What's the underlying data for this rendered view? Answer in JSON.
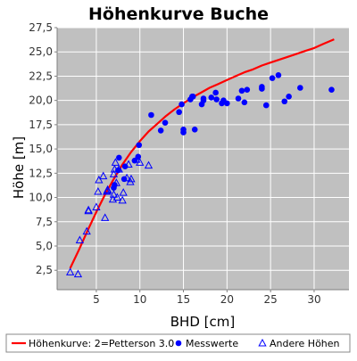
{
  "chart_data": {
    "type": "scatter",
    "title": "Höhenkurve  Buche",
    "xlabel": "BHD [cm]",
    "ylabel": "Höhe [m]",
    "xlim": [
      0.5,
      34
    ],
    "ylim": [
      0.5,
      27.5
    ],
    "xticks": [
      5,
      10,
      15,
      20,
      25,
      30
    ],
    "yticks": [
      2.5,
      5.0,
      7.5,
      10.0,
      12.5,
      15.0,
      17.5,
      20.0,
      22.5,
      25.0,
      27.5
    ],
    "ytick_labels": [
      "2,5",
      "5,0",
      "7,5",
      "10,0",
      "12,5",
      "15,0",
      "17,5",
      "20,0",
      "22,5",
      "25,0",
      "27,5"
    ],
    "grid": true,
    "legend_position": "bottom",
    "colors": {
      "plot_background": "#c0c0c0",
      "grid": "#ffffff",
      "curve": "#ff0000",
      "points": "#0000ff"
    },
    "series": [
      {
        "name": "Höhenkurve: 2=Petterson 3.0",
        "kind": "line",
        "color": "#ff0000",
        "x": [
          2,
          3,
          4,
          5,
          6,
          7,
          8,
          9,
          10,
          11,
          12,
          13,
          14,
          15,
          16,
          17,
          18,
          19,
          20,
          21,
          22,
          23,
          24,
          25,
          26,
          27,
          28,
          29,
          30,
          31,
          32.3
        ],
        "y": [
          2.7,
          4.6,
          6.6,
          8.5,
          10.3,
          11.9,
          13.4,
          14.7,
          15.8,
          16.8,
          17.6,
          18.4,
          19.1,
          19.7,
          20.3,
          20.8,
          21.3,
          21.7,
          22.1,
          22.5,
          22.9,
          23.2,
          23.6,
          23.9,
          24.2,
          24.5,
          24.8,
          25.1,
          25.4,
          25.8,
          26.3
        ]
      },
      {
        "name": "Messwerte",
        "kind": "scatter",
        "marker": "circle",
        "color": "#0000ff",
        "x": [
          7.0,
          7.1,
          7.5,
          7.6,
          8.2,
          8.3,
          9.4,
          9.8,
          9.9,
          11.3,
          12.4,
          12.9,
          14.5,
          14.8,
          15.0,
          15.0,
          15.8,
          16.0,
          16.1,
          16.3,
          17.1,
          17.3,
          17.3,
          18.2,
          18.7,
          18.8,
          19.4,
          19.5,
          19.6,
          20.0,
          21.3,
          21.7,
          22.0,
          22.3,
          24.0,
          24.0,
          24.5,
          25.2,
          25.9,
          26.6,
          27.1,
          28.4,
          32.0
        ],
        "y": [
          11.0,
          11.3,
          12.8,
          14.1,
          11.9,
          13.2,
          13.8,
          14.2,
          15.4,
          18.5,
          16.9,
          17.7,
          18.8,
          19.6,
          16.7,
          17.0,
          20.1,
          20.4,
          20.4,
          17.0,
          19.6,
          20.0,
          20.2,
          20.3,
          20.8,
          20.1,
          19.7,
          19.8,
          20.0,
          19.7,
          20.2,
          21.0,
          19.8,
          21.1,
          21.2,
          21.4,
          19.5,
          22.3,
          22.6,
          19.9,
          20.4,
          21.3,
          21.1
        ]
      },
      {
        "name": "Andere Höhen",
        "kind": "scatter",
        "marker": "triangle",
        "color": "#0000ff",
        "x": [
          2.0,
          2.9,
          3.1,
          3.9,
          4.1,
          4.1,
          5.0,
          5.2,
          5.3,
          5.8,
          6.0,
          6.2,
          6.3,
          6.3,
          6.9,
          7.0,
          7.0,
          7.1,
          7.2,
          7.3,
          7.4,
          7.6,
          8.0,
          8.1,
          8.5,
          8.7,
          8.9,
          9.0,
          9.6,
          10.0,
          11.0
        ],
        "y": [
          2.3,
          2.1,
          5.6,
          6.5,
          8.6,
          8.7,
          9.0,
          10.6,
          11.8,
          12.2,
          7.9,
          10.6,
          10.7,
          10.8,
          9.8,
          10.3,
          12.4,
          12.9,
          13.6,
          11.5,
          10.0,
          12.9,
          9.7,
          10.5,
          12.0,
          13.4,
          11.6,
          11.9,
          13.9,
          13.6,
          13.3
        ]
      }
    ]
  }
}
